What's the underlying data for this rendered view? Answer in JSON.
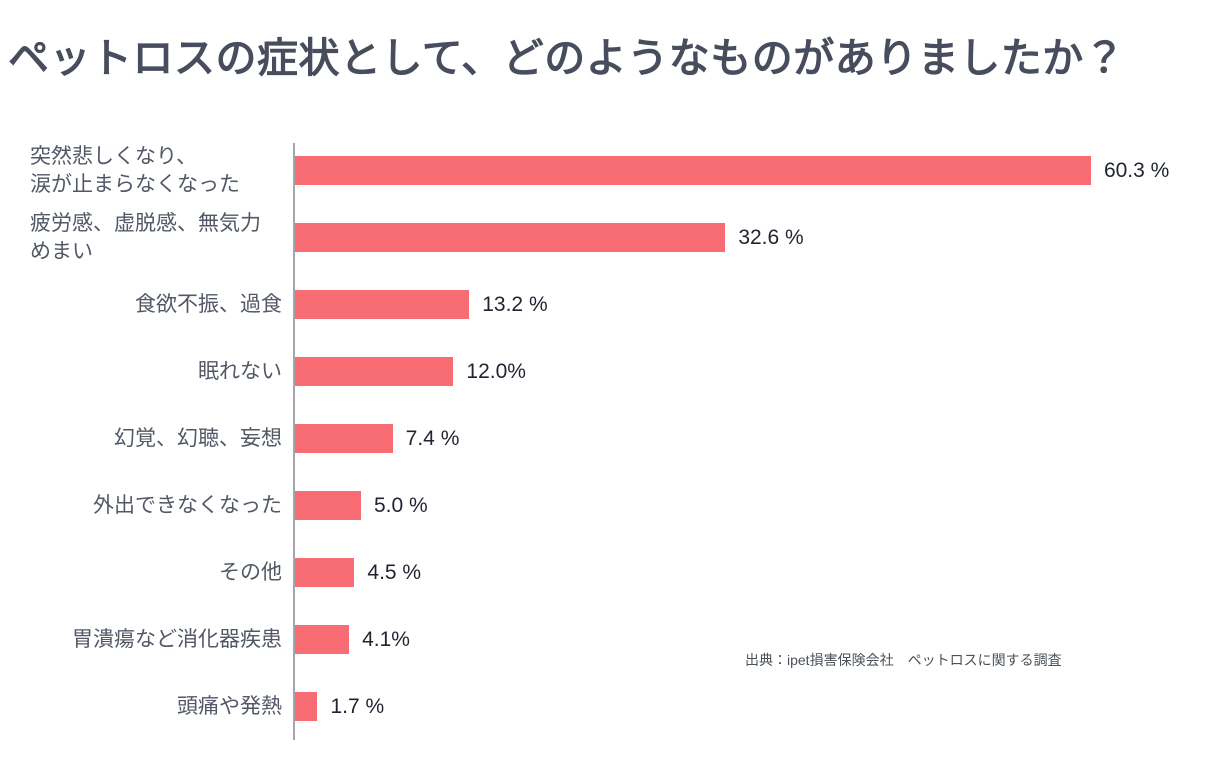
{
  "page": {
    "title": "ペットロスの症状として、どのようなものがありましたか？",
    "source_note": "出典：ipet損害保険会社　ペットロスに関する調査"
  },
  "colors": {
    "background": "#FFFFFF",
    "bar": "#F86D74",
    "title_text": "#474D5C",
    "category_text": "#525866",
    "value_text": "#1F2430",
    "axis_line": "#A3A7AD",
    "source_text": "#4B5259"
  },
  "chart_data": {
    "type": "bar",
    "orientation": "horizontal",
    "title": "ペットロスの症状として、どのようなものがありましたか？",
    "categories": [
      "突然悲しくなり、涙が止まらなくなった",
      "疲労感、虚脱感、無気力めまい",
      "食欲不振、過食",
      "眠れない",
      "幻覚、幻聴、妄想",
      "外出できなくなった",
      "その他",
      "胃潰瘍など消化器疾患",
      "頭痛や発熱"
    ],
    "category_display_lines": [
      [
        "突然悲しくなり、",
        "涙が止まらなくなった"
      ],
      [
        "疲労感、虚脱感、無気力",
        "めまい"
      ],
      [
        "食欲不振、過食"
      ],
      [
        "眠れない"
      ],
      [
        "幻覚、幻聴、妄想"
      ],
      [
        "外出できなくなった"
      ],
      [
        "その他"
      ],
      [
        "胃潰瘍など消化器疾患"
      ],
      [
        "頭痛や発熱"
      ]
    ],
    "values": [
      60.3,
      32.6,
      13.2,
      12.0,
      7.4,
      5.0,
      4.5,
      4.1,
      1.7
    ],
    "value_labels": [
      "60.3 %",
      "32.6 %",
      "13.2 %",
      "12.0%",
      "7.4 %",
      "5.0 %",
      "4.5 %",
      "4.1%",
      "1.7 %"
    ],
    "unit": "%",
    "bar_color": "#F86D74",
    "xlabel": "",
    "ylabel": "",
    "axis": {
      "x_axis_labels_visible": false,
      "gridlines": false,
      "baseline_visible": true
    },
    "legend": null,
    "source": "出典：ipet損害保険会社　ペットロスに関する調査"
  }
}
